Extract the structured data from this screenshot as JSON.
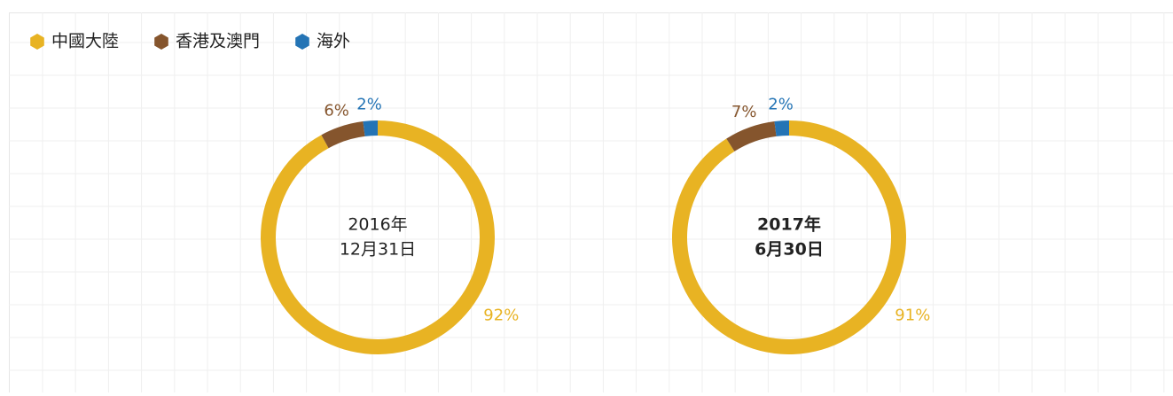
{
  "legend": {
    "items": [
      {
        "name": "中國大陸",
        "color": "#e8b323"
      },
      {
        "name": "香港及澳門",
        "color": "#85552d"
      },
      {
        "name": "海外",
        "color": "#2474b5"
      }
    ]
  },
  "chart_data": [
    {
      "type": "donut",
      "center_label": [
        "2016年",
        "12月31日"
      ],
      "values": [
        92,
        6,
        2
      ],
      "value_labels": [
        "92%",
        "6%",
        "2%"
      ]
    },
    {
      "type": "donut",
      "center_label": [
        "2017年",
        "6月30日"
      ],
      "center_bold": true,
      "values": [
        91,
        7,
        2
      ],
      "value_labels": [
        "91%",
        "7%",
        "2%"
      ]
    }
  ]
}
